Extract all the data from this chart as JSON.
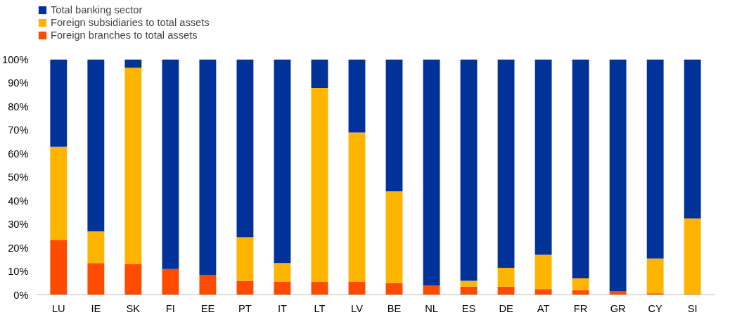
{
  "chart_data": {
    "type": "bar",
    "stacked": true,
    "legend": "top left",
    "grid": false,
    "categories": [
      "LU",
      "IE",
      "SK",
      "FI",
      "EE",
      "PT",
      "IT",
      "LT",
      "LV",
      "BE",
      "NL",
      "ES",
      "DE",
      "AT",
      "FR",
      "GR",
      "CY",
      "SI"
    ],
    "series": [
      {
        "name": "Foreign branches to total assets",
        "color": "#ff4b00",
        "values": [
          23.4,
          13.5,
          13,
          11,
          8.5,
          6,
          5.5,
          5.5,
          5.5,
          5,
          4,
          3.5,
          3.5,
          2.5,
          2,
          1.5,
          0.7,
          0
        ]
      },
      {
        "name": "Foreign subsidiaries to total assets",
        "color": "#ffb400",
        "values": [
          39.6,
          13.5,
          83.5,
          0,
          0,
          18.5,
          8,
          82.5,
          63.5,
          39,
          0,
          2.5,
          8,
          14.5,
          5,
          0,
          14.8,
          32.5
        ]
      },
      {
        "name": "Total banking sector",
        "color": "#003299",
        "values": [
          37,
          73,
          3.5,
          89,
          91.5,
          75.5,
          86.5,
          12,
          31,
          56,
          96,
          94,
          88.5,
          83,
          93,
          98.5,
          84.5,
          67.5
        ]
      }
    ],
    "ylim": [
      0,
      100
    ],
    "yticks": [
      {
        "value": 0,
        "label": "0%"
      },
      {
        "value": 10,
        "label": "10%"
      },
      {
        "value": 20,
        "label": "20%"
      },
      {
        "value": 30,
        "label": "30%"
      },
      {
        "value": 40,
        "label": "40%"
      },
      {
        "value": 50,
        "label": "50%"
      },
      {
        "value": 60,
        "label": "60%"
      },
      {
        "value": 70,
        "label": "70%"
      },
      {
        "value": 80,
        "label": "80%"
      },
      {
        "value": 90,
        "label": "90%"
      },
      {
        "value": 100,
        "label": "100%"
      }
    ]
  }
}
